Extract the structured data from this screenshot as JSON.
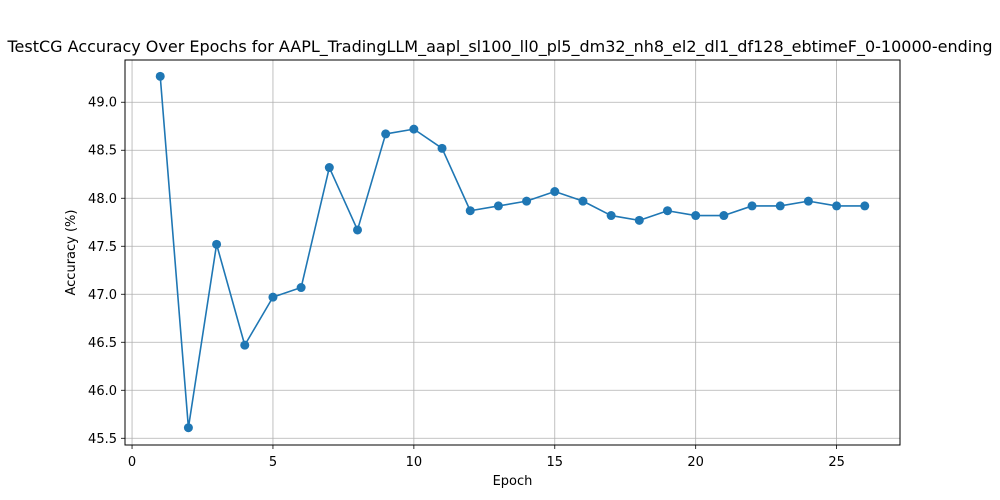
{
  "chart_data": {
    "type": "line",
    "title": "TestCG Accuracy Over Epochs for AAPL_TradingLLM_aapl_sl100_ll0_pl5_dm32_nh8_el2_dl1_df128_ebtimeF_0-10000-ending",
    "xlabel": "Epoch",
    "ylabel": "Accuracy (%)",
    "xlim": [
      -0.25,
      27.25
    ],
    "ylim": [
      45.43,
      49.44
    ],
    "xticks": [
      0,
      5,
      10,
      15,
      20,
      25
    ],
    "xtick_labels": [
      "0",
      "5",
      "10",
      "15",
      "20",
      "25"
    ],
    "yticks": [
      45.5,
      46.0,
      46.5,
      47.0,
      47.5,
      48.0,
      48.5,
      49.0
    ],
    "ytick_labels": [
      "45.5",
      "46.0",
      "46.5",
      "47.0",
      "47.5",
      "48.0",
      "48.5",
      "49.0"
    ],
    "grid": true,
    "line_color": "#1f77b4",
    "marker": "circle",
    "series": [
      {
        "x": [
          1,
          2,
          3,
          4,
          5,
          6,
          7,
          8,
          9,
          10,
          11,
          12,
          13,
          14,
          15,
          16,
          17,
          18,
          19,
          20,
          21,
          22,
          23,
          24,
          25,
          26
        ],
        "values": [
          49.27,
          45.61,
          47.52,
          46.47,
          46.97,
          47.07,
          48.32,
          47.67,
          48.67,
          48.72,
          48.52,
          47.87,
          47.92,
          47.97,
          48.07,
          47.97,
          47.82,
          47.77,
          47.87,
          47.82,
          47.82,
          47.92,
          47.92,
          47.97,
          47.92,
          47.92
        ]
      }
    ]
  }
}
